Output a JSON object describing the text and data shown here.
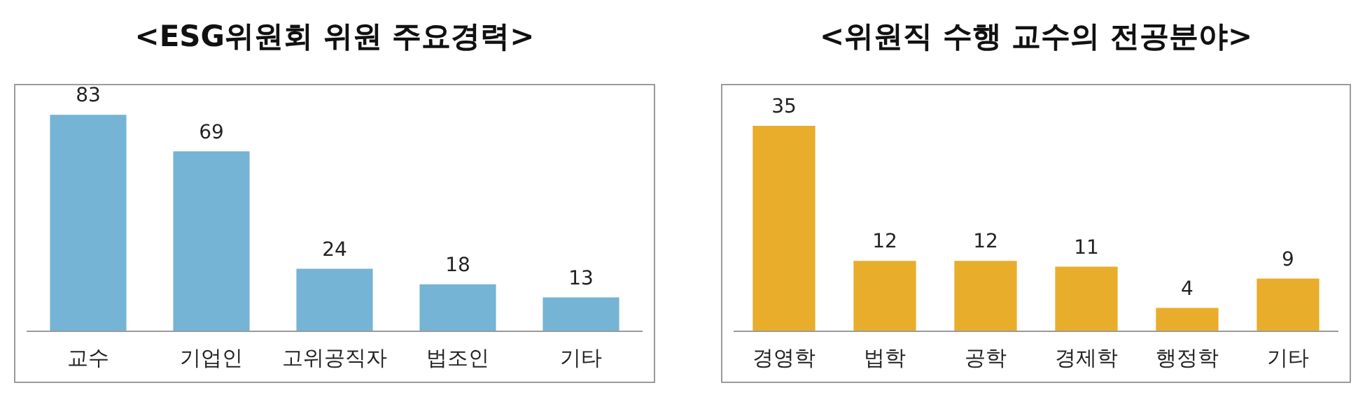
{
  "chart_data": [
    {
      "type": "bar",
      "title": "<ESG위원회 위원 주요경력>",
      "categories": [
        "교수",
        "기업인",
        "고위공직자",
        "법조인",
        "기타"
      ],
      "values": [
        83,
        69,
        24,
        18,
        13
      ],
      "color": "#75b4d4",
      "data_labels": true
    },
    {
      "type": "bar",
      "title": "<위원직 수행 교수의 전공분야>",
      "categories": [
        "경영학",
        "법학",
        "공학",
        "경제학",
        "행정학",
        "기타"
      ],
      "values": [
        35,
        12,
        12,
        11,
        4,
        9
      ],
      "color": "#e9ad2c",
      "data_labels": true
    }
  ]
}
